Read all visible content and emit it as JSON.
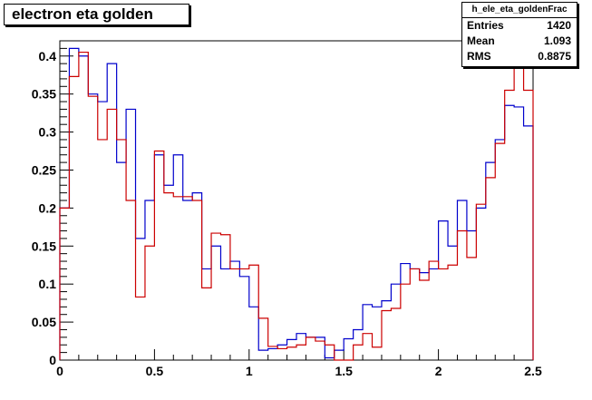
{
  "chart_data": {
    "type": "histogram",
    "title": "electron eta golden",
    "xlim": [
      0,
      2.5
    ],
    "ylim": [
      0,
      0.42
    ],
    "xticks": [
      "0",
      "0.5",
      "1",
      "1.5",
      "2",
      "2.5"
    ],
    "yticks": [
      "0",
      "0.05",
      "0.1",
      "0.15",
      "0.2",
      "0.25",
      "0.3",
      "0.35",
      "0.4"
    ],
    "bin_width": 0.05,
    "series": [
      {
        "color": "#0000cc",
        "values": [
          0.2,
          0.41,
          0.4,
          0.35,
          0.34,
          0.39,
          0.26,
          0.33,
          0.16,
          0.21,
          0.27,
          0.23,
          0.27,
          0.21,
          0.22,
          0.12,
          0.15,
          0.12,
          0.13,
          0.11,
          0.07,
          0.013,
          0.015,
          0.02,
          0.027,
          0.035,
          0.03,
          0.03,
          0.003,
          0.013,
          0.028,
          0.04,
          0.073,
          0.07,
          0.078,
          0.1,
          0.127,
          0.12,
          0.115,
          0.12,
          0.183,
          0.15,
          0.21,
          0.17,
          0.2,
          0.26,
          0.29,
          0.335,
          0.333,
          0.308
        ]
      },
      {
        "color": "#cc0000",
        "values": [
          0.2,
          0.373,
          0.405,
          0.347,
          0.29,
          0.33,
          0.29,
          0.21,
          0.083,
          0.15,
          0.275,
          0.22,
          0.215,
          0.215,
          0.21,
          0.095,
          0.167,
          0.165,
          0.12,
          0.12,
          0.125,
          0.055,
          0.018,
          0.015,
          0.017,
          0.02,
          0.03,
          0.025,
          0.02,
          0.0,
          0.0,
          0.02,
          0.035,
          0.017,
          0.065,
          0.068,
          0.1,
          0.12,
          0.105,
          0.13,
          0.12,
          0.125,
          0.17,
          0.135,
          0.205,
          0.24,
          0.285,
          0.355,
          0.425,
          0.355
        ]
      }
    ]
  },
  "stats": {
    "name": "h_ele_eta_goldenFrac",
    "rows": [
      {
        "label": "Entries",
        "value": "1420"
      },
      {
        "label": "Mean",
        "value": "1.093"
      },
      {
        "label": "RMS",
        "value": "0.8875"
      }
    ]
  }
}
